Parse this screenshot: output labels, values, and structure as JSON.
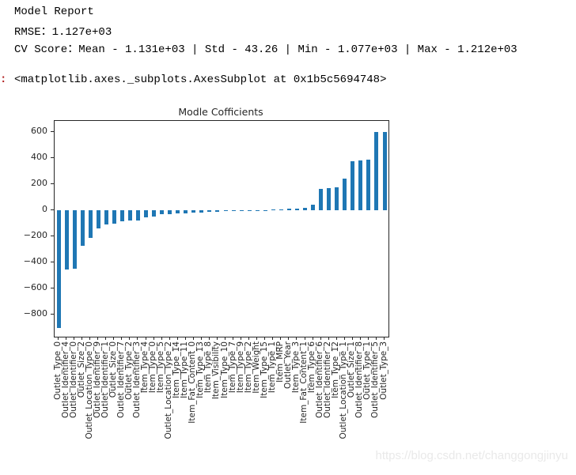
{
  "report": {
    "title": "Model Report",
    "rmse": "RMSE：1.127e+03",
    "cv": "CV Score：Mean - 1.131e+03 | Std - 43.26 | Min - 1.077e+03 | Max - 1.212e+03"
  },
  "out_prompt": ":",
  "repr_text": "<matplotlib.axes._subplots.AxesSubplot at 0x1b5c5694748>",
  "watermark": "https://blog.csdn.net/changgongjinyu",
  "colors": {
    "bar": "#1f77b4",
    "axis": "#262626",
    "prompt_red": "#b22222",
    "watermark": "#e9e9e9"
  },
  "chart_data": {
    "type": "bar",
    "title": "Modle Cofficients",
    "xlabel": "",
    "ylabel": "",
    "ylim": [
      -970,
      685
    ],
    "grid": false,
    "legend": "none",
    "yticks": [
      600,
      400,
      200,
      0,
      -200,
      -400,
      -600,
      -800
    ],
    "ytick_labels": [
      "600",
      "400",
      "200",
      "0",
      "−200",
      "−400",
      "−600",
      "−800"
    ],
    "categories": [
      "Outlet_Type_0",
      "Outlet_Identifier_4",
      "Outlet_Identifier_0",
      "Outlet_Size_2",
      "Outlet_Location_Type_0",
      "Outlet_Identifier_9",
      "Outlet_Identifier_1",
      "Outlet_Size_0",
      "Outlet_Identifier_7",
      "Outlet_Type_2",
      "Outlet_Identifier_3",
      "Item_Type_4",
      "Item_Type_0",
      "Item_Type_5",
      "Outlet_Location_Type_2",
      "Item_Type_14",
      "Item_Type_11",
      "Item_Fat_Content_0",
      "Item_Type_13",
      "Item_Type_8",
      "Item_Visibility",
      "Item_Type_10",
      "Item_Type_7",
      "Item_Type_9",
      "Item_Type_2",
      "Item_Weight",
      "Item_Type_15",
      "Item_Type_1",
      "Item_MRP",
      "Outlet_Year",
      "Item_Type_3",
      "Item_Fat_Content_1",
      "Item_Type_6",
      "Outlet_Identifier_6",
      "Outlet_Identifier_2",
      "Item_Type_12",
      "Outlet_Location_Type_1",
      "Outlet_Size_1",
      "Outlet_Identifier_8",
      "Outlet_Type_1",
      "Outlet_Identifier_5",
      "Outlet_Type_3"
    ],
    "values": [
      -900,
      -455,
      -448,
      -270,
      -215,
      -140,
      -108,
      -106,
      -83,
      -81,
      -79,
      -52,
      -48,
      -33,
      -30,
      -27,
      -24,
      -20,
      -17,
      -13,
      -10,
      -7,
      -4,
      -2,
      -1,
      -1,
      2,
      6,
      8,
      10,
      13,
      17,
      45,
      165,
      171,
      177,
      245,
      378,
      380,
      390,
      597,
      600
    ]
  }
}
